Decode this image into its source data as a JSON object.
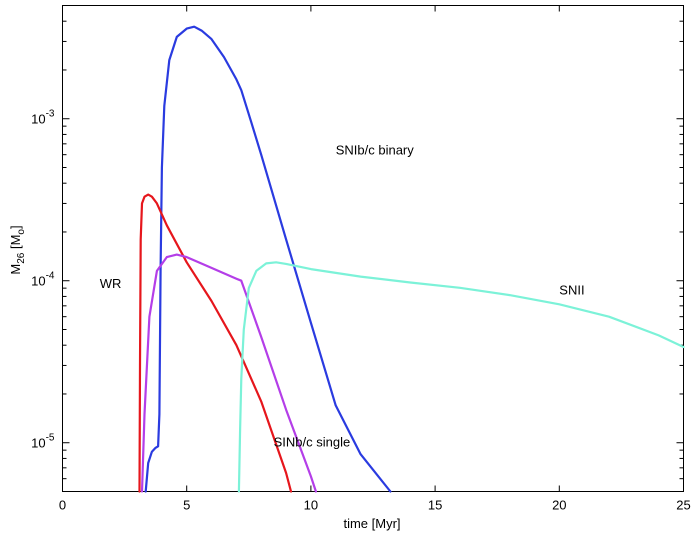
{
  "chart_data": {
    "type": "line",
    "xlabel": "time   [Myr]",
    "ylabel_main": "M",
    "ylabel_sub": "26",
    "ylabel_unit_open": " [M",
    "ylabel_unit_sub": "o",
    "ylabel_unit_close": "]",
    "xlim": [
      0,
      25
    ],
    "ylim": [
      5e-06,
      0.005
    ],
    "yscale": "log",
    "grid": false,
    "legend": "none",
    "x_ticks": [
      0,
      5,
      10,
      15,
      20,
      25
    ],
    "x_tick_labels": [
      "0",
      "5",
      "10",
      "15",
      "20",
      "25"
    ],
    "y_ticks": [
      {
        "value": 1e-05,
        "base": "10",
        "exp": "-5"
      },
      {
        "value": 0.0001,
        "base": "10",
        "exp": "-4"
      },
      {
        "value": 0.001,
        "base": "10",
        "exp": "-3"
      }
    ],
    "series": [
      {
        "label": "SNIb/c binary",
        "color": "#2a3be0",
        "label_position": {
          "x": 11.0,
          "y": 0.0006
        },
        "x": [
          3.35,
          3.45,
          3.6,
          3.75,
          3.85,
          3.9,
          3.95,
          4.0,
          4.1,
          4.3,
          4.6,
          5.0,
          5.3,
          5.6,
          6.0,
          6.5,
          7.0,
          7.2,
          7.6,
          8.0,
          9.0,
          10.0,
          11.0,
          12.0,
          13.2
        ],
        "y": [
          5e-06,
          7.5e-06,
          8.8e-06,
          9.3e-06,
          9.5e-06,
          1.5e-05,
          0.00012,
          0.0005,
          0.0012,
          0.0023,
          0.0032,
          0.0036,
          0.0037,
          0.0035,
          0.0031,
          0.0024,
          0.00175,
          0.0015,
          0.00095,
          0.0006,
          0.00018,
          5.5e-05,
          1.7e-05,
          8.5e-06,
          5e-06
        ]
      },
      {
        "label": "WR",
        "color": "#e6161c",
        "label_position": {
          "x": 1.5,
          "y": 9e-05
        },
        "x": [
          3.1,
          3.12,
          3.15,
          3.2,
          3.3,
          3.45,
          3.6,
          3.8,
          4.2,
          5.0,
          6.0,
          7.0,
          8.0,
          9.0,
          9.2
        ],
        "y": [
          5e-06,
          3e-05,
          0.00018,
          0.0003,
          0.00033,
          0.00034,
          0.00033,
          0.0003,
          0.00022,
          0.00013,
          7.5e-05,
          4e-05,
          1.8e-05,
          6.5e-06,
          5e-06
        ]
      },
      {
        "label": "SINb/c single",
        "color": "#b43ee8",
        "label_position": {
          "x": 8.5,
          "y": 9.5e-06
        },
        "x": [
          3.2,
          3.3,
          3.5,
          3.8,
          4.2,
          4.6,
          5.0,
          6.0,
          7.0,
          7.2,
          8.0,
          9.0,
          10.0,
          10.2
        ],
        "y": [
          5e-06,
          1.5e-05,
          6e-05,
          0.000115,
          0.00014,
          0.000145,
          0.00014,
          0.00012,
          0.000103,
          0.0001,
          4.5e-05,
          1.6e-05,
          6.2e-06,
          5e-06
        ]
      },
      {
        "label": "SNII",
        "color": "#7cf2d8",
        "label_position": {
          "x": 20.0,
          "y": 8.2e-05
        },
        "x": [
          7.1,
          7.15,
          7.2,
          7.3,
          7.5,
          7.8,
          8.2,
          8.6,
          9.0,
          10.0,
          12.0,
          14.0,
          16.0,
          18.0,
          20.0,
          22.0,
          24.0,
          25.0
        ],
        "y": [
          5e-06,
          1.2e-05,
          2.5e-05,
          5e-05,
          9e-05,
          0.000115,
          0.000128,
          0.00013,
          0.000127,
          0.000118,
          0.000106,
          9.75e-05,
          9.05e-05,
          8.15e-05,
          7.15e-05,
          6e-05,
          4.6e-05,
          3.9e-05
        ]
      }
    ]
  }
}
